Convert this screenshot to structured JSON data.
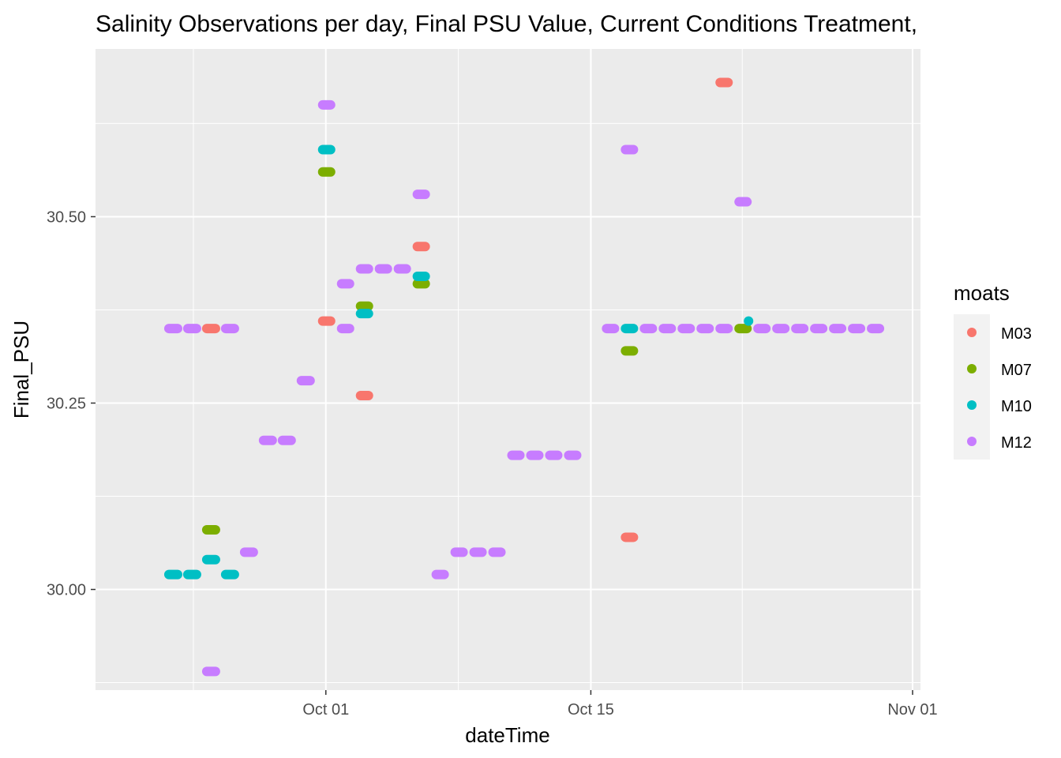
{
  "chart_data": {
    "type": "scatter",
    "title": "Salinity Observations per day, Final PSU Value, Current Conditions Treatment,",
    "xlabel": "dateTime",
    "ylabel": "Final_PSU",
    "x_ticks": [
      "Oct 01",
      "Oct 15",
      "Nov 01"
    ],
    "y_ticks": [
      "30.00",
      "30.25",
      "30.50"
    ],
    "xlim": [
      "2019-09-22",
      "2019-11-01"
    ],
    "ylim": [
      29.865,
      30.725
    ],
    "grid": true,
    "legend": {
      "title": "moats",
      "position": "right"
    },
    "series": [
      {
        "name": "M03",
        "color": "#F8766D",
        "segments": [
          {
            "start": "2019-09-24T17:00",
            "end": "2019-09-25T04:00",
            "y": 30.35
          },
          {
            "start": "2019-09-30T20:00",
            "end": "2019-10-01T06:00",
            "y": 30.36
          },
          {
            "start": "2019-10-02T20:00",
            "end": "2019-10-03T06:00",
            "y": 30.26
          },
          {
            "start": "2019-10-05T20:00",
            "end": "2019-10-06T06:00",
            "y": 30.46
          },
          {
            "start": "2019-10-16T20:00",
            "end": "2019-10-17T06:00",
            "y": 30.07
          },
          {
            "start": "2019-10-21T20:00",
            "end": "2019-10-22T06:00",
            "y": 30.68
          }
        ]
      },
      {
        "name": "M07",
        "color": "#7CAE00",
        "segments": [
          {
            "start": "2019-09-24T17:00",
            "end": "2019-09-25T04:00",
            "y": 30.08
          },
          {
            "start": "2019-09-30T20:00",
            "end": "2019-10-01T06:00",
            "y": 30.56
          },
          {
            "start": "2019-10-02T20:00",
            "end": "2019-10-03T06:00",
            "y": 30.38
          },
          {
            "start": "2019-10-05T20:00",
            "end": "2019-10-06T06:00",
            "y": 30.41
          },
          {
            "start": "2019-10-16T20:00",
            "end": "2019-10-17T06:00",
            "y": 30.32
          },
          {
            "start": "2019-10-22T20:00",
            "end": "2019-10-23T06:00",
            "y": 30.35
          }
        ]
      },
      {
        "name": "M10",
        "color": "#00BFC4",
        "segments": [
          {
            "start": "2019-09-22T17:00",
            "end": "2019-09-23T04:00",
            "y": 30.02
          },
          {
            "start": "2019-09-23T17:00",
            "end": "2019-09-24T04:00",
            "y": 30.02
          },
          {
            "start": "2019-09-24T17:00",
            "end": "2019-09-25T04:00",
            "y": 30.04
          },
          {
            "start": "2019-09-25T17:00",
            "end": "2019-09-26T04:00",
            "y": 30.02
          },
          {
            "start": "2019-09-30T20:00",
            "end": "2019-10-01T06:00",
            "y": 30.59
          },
          {
            "start": "2019-10-02T20:00",
            "end": "2019-10-03T06:00",
            "y": 30.37
          },
          {
            "start": "2019-10-05T20:00",
            "end": "2019-10-06T06:00",
            "y": 30.42
          },
          {
            "start": "2019-10-16T20:00",
            "end": "2019-10-17T06:00",
            "y": 30.35
          },
          {
            "start": "2019-10-23T08:00",
            "end": "2019-10-23T08:00",
            "y": 30.36
          }
        ]
      },
      {
        "name": "M12",
        "color": "#C77CFF",
        "segments": [
          {
            "start": "2019-09-22T17:00",
            "end": "2019-09-23T04:00",
            "y": 30.35
          },
          {
            "start": "2019-09-23T17:00",
            "end": "2019-09-24T04:00",
            "y": 30.35
          },
          {
            "start": "2019-09-24T17:00",
            "end": "2019-09-25T04:00",
            "y": 29.89
          },
          {
            "start": "2019-09-25T17:00",
            "end": "2019-09-26T04:00",
            "y": 30.35
          },
          {
            "start": "2019-09-26T17:00",
            "end": "2019-09-27T04:00",
            "y": 30.05
          },
          {
            "start": "2019-09-27T17:00",
            "end": "2019-09-28T04:00",
            "y": 30.2
          },
          {
            "start": "2019-09-28T17:00",
            "end": "2019-09-29T04:00",
            "y": 30.2
          },
          {
            "start": "2019-09-29T17:00",
            "end": "2019-09-30T04:00",
            "y": 30.28
          },
          {
            "start": "2019-09-30T20:00",
            "end": "2019-10-01T06:00",
            "y": 30.65
          },
          {
            "start": "2019-10-01T20:00",
            "end": "2019-10-02T06:00",
            "y": 30.41
          },
          {
            "start": "2019-10-01T20:00",
            "end": "2019-10-02T06:00",
            "y": 30.35
          },
          {
            "start": "2019-10-02T20:00",
            "end": "2019-10-03T06:00",
            "y": 30.43
          },
          {
            "start": "2019-10-03T20:00",
            "end": "2019-10-04T06:00",
            "y": 30.43
          },
          {
            "start": "2019-10-04T20:00",
            "end": "2019-10-05T06:00",
            "y": 30.43
          },
          {
            "start": "2019-10-05T20:00",
            "end": "2019-10-06T06:00",
            "y": 30.53
          },
          {
            "start": "2019-10-06T20:00",
            "end": "2019-10-07T06:00",
            "y": 30.02
          },
          {
            "start": "2019-10-07T20:00",
            "end": "2019-10-08T06:00",
            "y": 30.05
          },
          {
            "start": "2019-10-08T20:00",
            "end": "2019-10-09T06:00",
            "y": 30.05
          },
          {
            "start": "2019-10-09T20:00",
            "end": "2019-10-10T06:00",
            "y": 30.05
          },
          {
            "start": "2019-10-10T20:00",
            "end": "2019-10-11T06:00",
            "y": 30.18
          },
          {
            "start": "2019-10-11T20:00",
            "end": "2019-10-12T06:00",
            "y": 30.18
          },
          {
            "start": "2019-10-12T20:00",
            "end": "2019-10-13T06:00",
            "y": 30.18
          },
          {
            "start": "2019-10-13T20:00",
            "end": "2019-10-14T06:00",
            "y": 30.18
          },
          {
            "start": "2019-10-15T20:00",
            "end": "2019-10-16T06:00",
            "y": 30.35
          },
          {
            "start": "2019-10-16T20:00",
            "end": "2019-10-17T06:00",
            "y": 30.59
          },
          {
            "start": "2019-10-17T20:00",
            "end": "2019-10-18T06:00",
            "y": 30.35
          },
          {
            "start": "2019-10-18T20:00",
            "end": "2019-10-19T06:00",
            "y": 30.35
          },
          {
            "start": "2019-10-19T20:00",
            "end": "2019-10-20T06:00",
            "y": 30.35
          },
          {
            "start": "2019-10-20T20:00",
            "end": "2019-10-21T06:00",
            "y": 30.35
          },
          {
            "start": "2019-10-21T20:00",
            "end": "2019-10-22T06:00",
            "y": 30.35
          },
          {
            "start": "2019-10-22T20:00",
            "end": "2019-10-23T06:00",
            "y": 30.52
          },
          {
            "start": "2019-10-23T20:00",
            "end": "2019-10-24T06:00",
            "y": 30.35
          },
          {
            "start": "2019-10-24T20:00",
            "end": "2019-10-25T06:00",
            "y": 30.35
          },
          {
            "start": "2019-10-25T20:00",
            "end": "2019-10-26T06:00",
            "y": 30.35
          },
          {
            "start": "2019-10-26T20:00",
            "end": "2019-10-27T06:00",
            "y": 30.35
          },
          {
            "start": "2019-10-27T20:00",
            "end": "2019-10-28T06:00",
            "y": 30.35
          },
          {
            "start": "2019-10-28T20:00",
            "end": "2019-10-29T06:00",
            "y": 30.35
          },
          {
            "start": "2019-10-29T20:00",
            "end": "2019-10-30T06:00",
            "y": 30.35
          }
        ]
      }
    ]
  }
}
